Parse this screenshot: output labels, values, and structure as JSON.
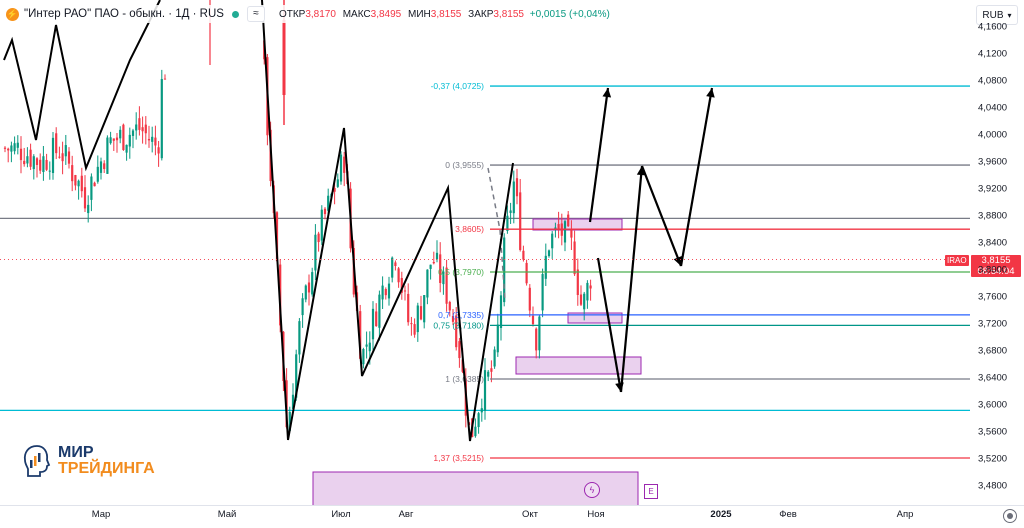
{
  "legend": {
    "symbol_icon": "orange-circle-icon",
    "title": "\"Интер РАО\" ПАО - обыкн. · 1Д · RUS",
    "open_label": "ОТКР",
    "open_value": "3,8170",
    "high_label": "МАКС",
    "high_value": "3,8495",
    "low_label": "МИН",
    "low_value": "3,8155",
    "close_label": "ЗАКР",
    "close_value": "3,8155",
    "change": "+0,0015 (+0,04%)",
    "collapse_icon": "chevron-double-icon"
  },
  "currency_button": "RUB",
  "price_axis": {
    "ticks": [
      "4,1600",
      "4,1200",
      "4,0800",
      "4,0400",
      "4,0000",
      "3,9600",
      "3,9200",
      "3,8800",
      "3,8400",
      "3,8000",
      "3,7600",
      "3,7200",
      "3,6800",
      "3,6400",
      "3,6000",
      "3,5600",
      "3,5200",
      "3,4800"
    ],
    "current_price": "3,8155",
    "countdown": "08:54:04",
    "ticker": "IRAO"
  },
  "time_axis": {
    "labels": [
      "Мар",
      "Май",
      "Июл",
      "Авг",
      "Окт",
      "Ноя",
      "2025",
      "Фев",
      "Апр"
    ],
    "bold_label": "2025"
  },
  "fib_levels": [
    {
      "text": "-0,37 (4,0725)",
      "value": 4.0725,
      "color": "#00bcd4"
    },
    {
      "text": "0 (3,9555)",
      "value": 3.9555,
      "color": "#787b86"
    },
    {
      "text": "3,8605)",
      "value": 3.8605,
      "color": "#f23645"
    },
    {
      "text": "0,5 (3,7970)",
      "value": 3.797,
      "color": "#4caf50"
    },
    {
      "text": "0,7 (3,7335)",
      "value": 3.7335,
      "color": "#2962ff"
    },
    {
      "text": "0,75 (3,7180)",
      "value": 3.718,
      "color": "#009688"
    },
    {
      "text": "1 (3,6385)",
      "value": 3.6385,
      "color": "#787b86"
    },
    {
      "text": "1,37 (3,5215)",
      "value": 3.5215,
      "color": "#f23645"
    }
  ],
  "horizontal_lines": [
    {
      "value": 3.8765,
      "color": "#787b86"
    },
    {
      "value": 3.592,
      "color": "#00bcd4"
    }
  ],
  "logo": {
    "line1": "МИР",
    "line2": "ТРЕЙДИНГА"
  },
  "bolt_icon": "lightning-icon",
  "e_marker": "E",
  "colors": {
    "up": "#089981",
    "down": "#f23645",
    "box_fill": "#e1bee7",
    "box_border": "#9c27b0"
  }
}
